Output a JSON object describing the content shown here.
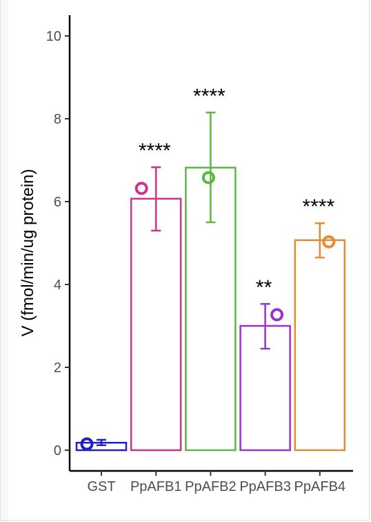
{
  "chart_data": {
    "type": "bar",
    "title": "",
    "xlabel": "",
    "ylabel": "V (fmol/min/ug protein)",
    "ylim": [
      -0.5,
      10.5
    ],
    "yticks": [
      0,
      2,
      4,
      6,
      8,
      10
    ],
    "grid": false,
    "legend": "none",
    "categories": [
      "GST",
      "PpAFB1",
      "PpAFB2",
      "PpAFB3",
      "PpAFB4"
    ],
    "values": [
      0.18,
      6.07,
      6.82,
      3.0,
      5.07
    ],
    "error_low": [
      0.12,
      5.3,
      5.5,
      2.45,
      4.65
    ],
    "error_high": [
      0.25,
      6.83,
      8.15,
      3.53,
      5.48
    ],
    "points": [
      0.15,
      6.32,
      6.58,
      3.27,
      5.03
    ],
    "significance": [
      "",
      "****",
      "****",
      "**",
      "****"
    ],
    "colors": [
      "#1f1fbf",
      "#d1338c",
      "#57ba3c",
      "#9932cc",
      "#e88a35"
    ]
  }
}
